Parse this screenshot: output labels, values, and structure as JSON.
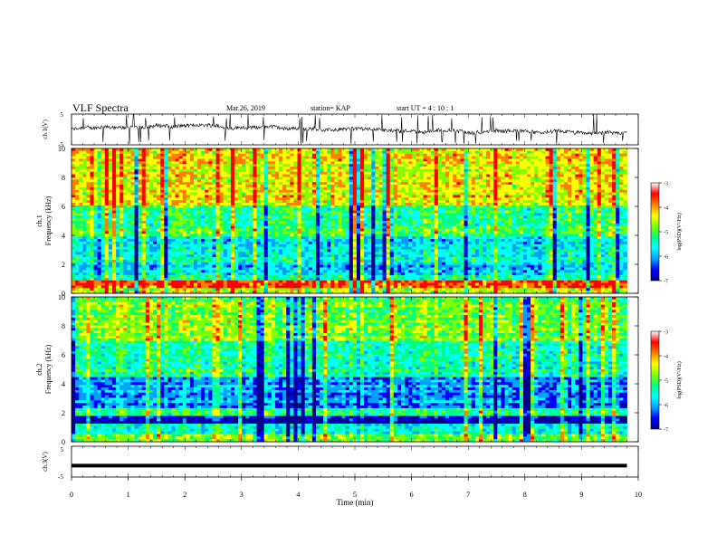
{
  "header": {
    "title": "VLF Spectra",
    "date": "Mar.26, 2019",
    "station": "station= KAP",
    "start": "start  UT =   4 : 10 : 1"
  },
  "chart_data": [
    {
      "type": "line",
      "panel": "ch1-waveform",
      "ylabel": "ch.1(V)",
      "ylim": [
        -5,
        5
      ],
      "yticks": [
        "5",
        "-5"
      ],
      "xlim": [
        0,
        10
      ],
      "series": [
        {
          "description_visible": "noisy waveform trace",
          "level_volts_approx": 0
        }
      ]
    },
    {
      "type": "heatmap",
      "panel": "ch1-spectrogram",
      "ylabel": "ch.1\nFrequency (kHz)",
      "ylabel_line1": "ch.1",
      "ylabel_line2": "Frequency (kHz)",
      "ylim": [
        0,
        10
      ],
      "yticks": [
        "0",
        "2",
        "4",
        "6",
        "8",
        "10"
      ],
      "xlim": [
        0,
        9.8
      ],
      "colorbar": {
        "label": "log(PSD)(V²/Hz)",
        "ticks": [
          "-3",
          "-4",
          "-5",
          "-6",
          "-7"
        ],
        "range": [
          -7,
          -3
        ]
      },
      "bands_khz": [
        {
          "from": 0,
          "to": 0.4,
          "level": -4.2
        },
        {
          "from": 0.4,
          "to": 0.9,
          "level": -3.4
        },
        {
          "from": 0.9,
          "to": 1.2,
          "level": -5.2
        },
        {
          "from": 1.2,
          "to": 2.2,
          "level": -5.6
        },
        {
          "from": 2.2,
          "to": 3.0,
          "level": -5.3
        },
        {
          "from": 3.0,
          "to": 4.0,
          "level": -5.6
        },
        {
          "from": 4.0,
          "to": 6.0,
          "level": -4.9
        },
        {
          "from": 6.0,
          "to": 10.0,
          "level": -4.1
        }
      ]
    },
    {
      "type": "heatmap",
      "panel": "ch2-spectrogram",
      "ylabel": "ch.2\nFrequency (kHz)",
      "ylabel_line1": "ch.2",
      "ylabel_line2": "Frequency (kHz)",
      "ylim": [
        0,
        10
      ],
      "yticks": [
        "0",
        "2",
        "4",
        "6",
        "8",
        "10"
      ],
      "xlim": [
        0,
        9.8
      ],
      "colorbar": {
        "label": "log(PSD)(V²/Hz)",
        "ticks": [
          "-3",
          "-4",
          "-5",
          "-6",
          "-7"
        ],
        "range": [
          -7,
          -3
        ]
      },
      "bands_khz": [
        {
          "from": 0,
          "to": 0.6,
          "level": -4.6
        },
        {
          "from": 0.6,
          "to": 1.2,
          "level": -5.3
        },
        {
          "from": 1.2,
          "to": 1.8,
          "level": -6.6
        },
        {
          "from": 1.8,
          "to": 2.4,
          "level": -5.0
        },
        {
          "from": 2.4,
          "to": 4.5,
          "level": -5.9
        },
        {
          "from": 4.5,
          "to": 7.0,
          "level": -5.1
        },
        {
          "from": 7.0,
          "to": 10.0,
          "level": -4.6
        }
      ]
    },
    {
      "type": "line",
      "panel": "ch3-waveform",
      "ylabel": "ch.3(V)",
      "ylim": [
        -5,
        5
      ],
      "yticks": [
        "5",
        "-5"
      ],
      "xlim": [
        0,
        10
      ],
      "series": [
        {
          "constant_volts": -1.3
        }
      ]
    }
  ],
  "xaxis": {
    "label": "Time (min)",
    "range": [
      0,
      10
    ],
    "ticks": [
      "0",
      "1",
      "2",
      "3",
      "4",
      "5",
      "6",
      "7",
      "8",
      "9",
      "10"
    ]
  },
  "colors": {
    "scale": [
      "#00008b",
      "#0000ff",
      "#00a0ff",
      "#00ffff",
      "#00ff80",
      "#80ff00",
      "#ffff00",
      "#ff8000",
      "#ff0000",
      "#ffffff"
    ]
  }
}
